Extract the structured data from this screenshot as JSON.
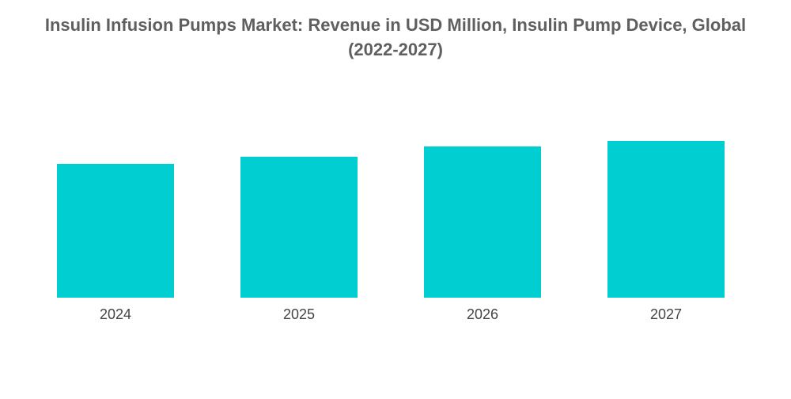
{
  "chart_data": {
    "type": "bar",
    "title_line1": "Insulin Infusion Pumps Market: Revenue in USD Million, Insulin Pump Device, Global",
    "title_line2": "(2022-2027)",
    "categories": [
      "2024",
      "2025",
      "2026",
      "2027"
    ],
    "values": [
      84.5,
      89,
      95.5,
      99
    ],
    "xlabel": "",
    "ylabel": "",
    "ylim": [
      0,
      100
    ],
    "grid": false,
    "legend": "none",
    "bar_color": "#00CED1"
  }
}
